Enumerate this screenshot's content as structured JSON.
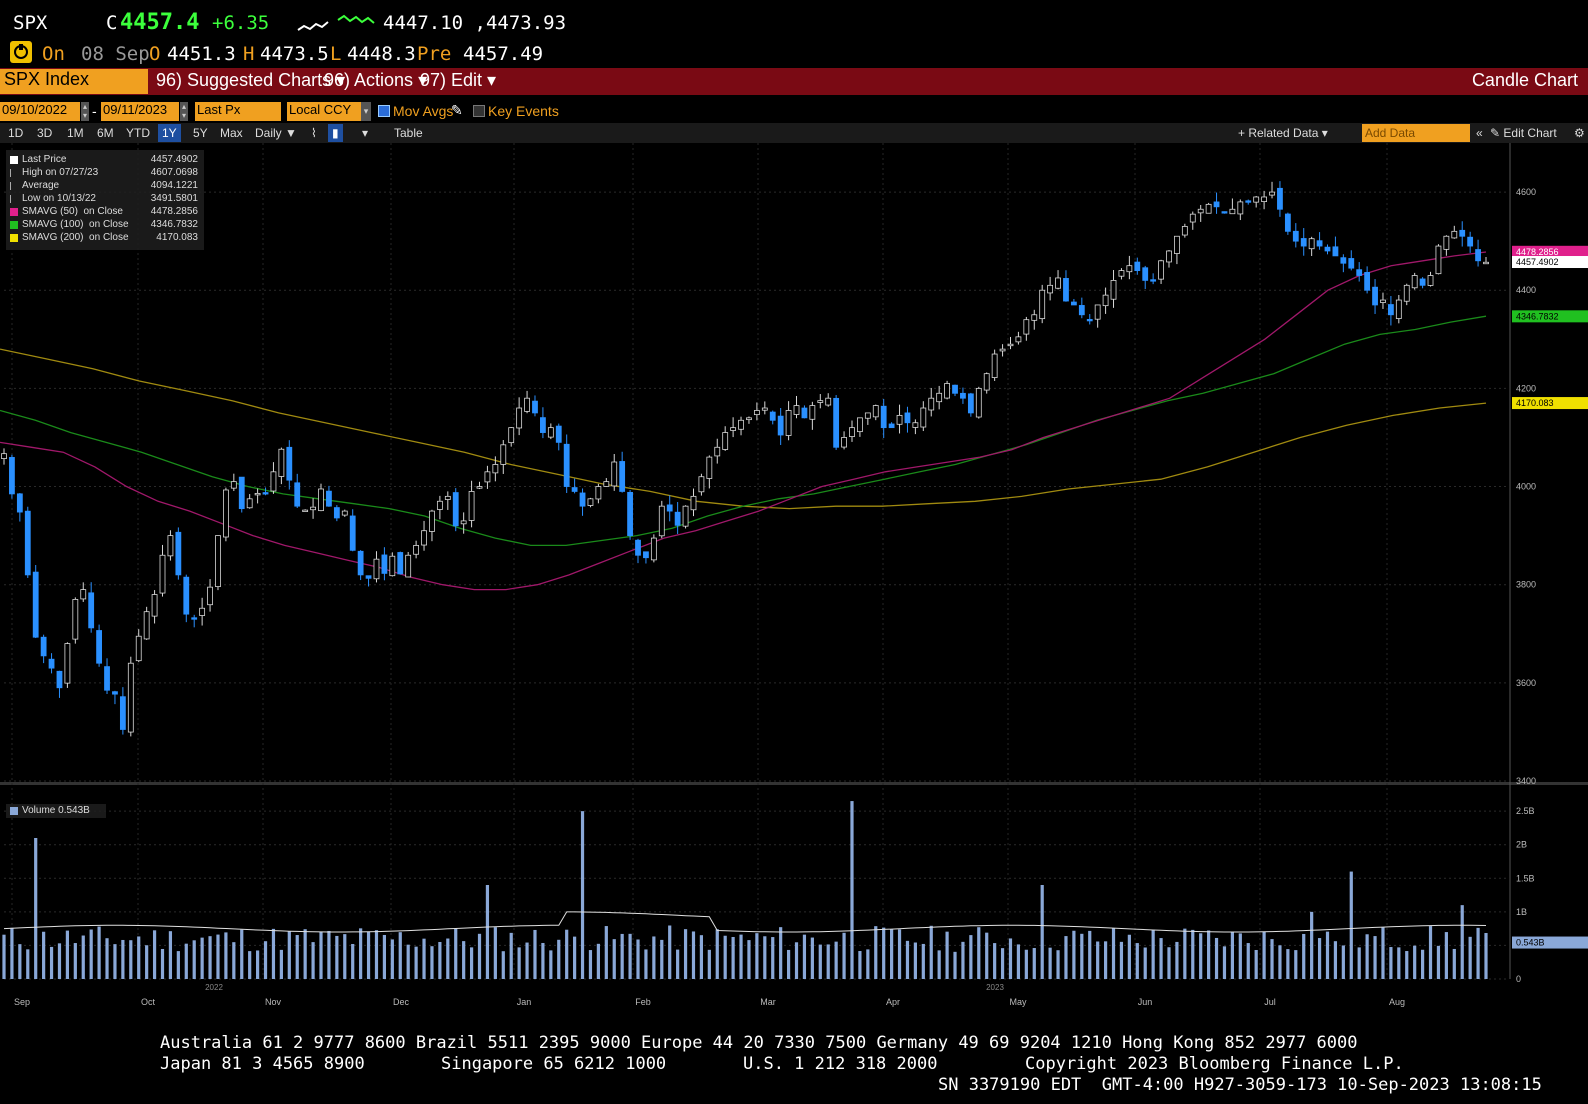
{
  "header": {
    "ticker": "SPX",
    "flag": "C",
    "last": "4457.4",
    "change": "+6.35",
    "range": "4447.10 ,4473.93",
    "row2": {
      "badge": "On",
      "date": "08 Sep",
      "o_label": "O",
      "o_value": "4451.3",
      "h_label": "H",
      "h_value": "4473.5",
      "l_label": "L",
      "l_value": "4448.3",
      "pre_label": "Pre",
      "pre_value": "4457.49"
    }
  },
  "menu": {
    "security": "SPX Index",
    "suggested": "96) Suggested Charts",
    "actions": "96) Actions",
    "edit": "97) Edit",
    "chart_type": "Candle Chart"
  },
  "controls": {
    "start_date": "09/10/2022",
    "end_date": "09/11/2023",
    "field": "Last Px",
    "currency": "Local CCY",
    "mov_avgs": "Mov Avgs",
    "key_events": "Key Events"
  },
  "toolbar": {
    "periods": [
      "1D",
      "3D",
      "1M",
      "6M",
      "YTD",
      "1Y",
      "5Y",
      "Max"
    ],
    "selected": "1Y",
    "freq": "Daily",
    "table": "Table",
    "related": "+ Related Data",
    "add_data": "Add Data",
    "edit_chart": "Edit Chart"
  },
  "legend": [
    {
      "name": "Last Price",
      "value": "4457.4902",
      "color": "#ffffff"
    },
    {
      "name": "High on 07/27/23",
      "value": "4607.0698",
      "color": ""
    },
    {
      "name": "Average",
      "value": "4094.1221",
      "color": ""
    },
    {
      "name": "Low on 10/13/22",
      "value": "3491.5801",
      "color": ""
    },
    {
      "name": "SMAVG (50)  on Close",
      "value": "4478.2856",
      "color": "#e0208c"
    },
    {
      "name": "SMAVG (100)  on Close",
      "value": "4346.7832",
      "color": "#20c020"
    },
    {
      "name": "SMAVG (200)  on Close",
      "value": "4170.083",
      "color": "#f0e000"
    }
  ],
  "volume_label": "Volume 0.543B",
  "footer": {
    "line1": "Australia 61 2 9777 8600 Brazil 5511 2395 9000 Europe 44 20 7330 7500 Germany 49 69 9204 1210 Hong Kong 852 2977 6000",
    "line2a": "Japan 81 3 4565 8900",
    "line2b": "Singapore 65 6212 1000",
    "line2c": "U.S. 1 212 318 2000",
    "line2d": "Copyright 2023 Bloomberg Finance L.P.",
    "line3": "SN 3379190 EDT  GMT-4:00 H927-3059-173 10-Sep-2023 13:08:15"
  },
  "chart_data": {
    "type": "candlestick",
    "price_axis": {
      "min": 3400,
      "max": 4700,
      "ticks": [
        3400,
        3600,
        3800,
        4000,
        4200,
        4400,
        4600
      ],
      "side": "right"
    },
    "volume_axis": {
      "min": 0,
      "max": 2.8,
      "ticks": [
        "0",
        "0.5B",
        "1B",
        "1.5B",
        "2B",
        "2.5B"
      ],
      "tick_values": [
        0,
        0.5,
        1,
        1.5,
        2,
        2.5
      ]
    },
    "x_labels": [
      "Sep",
      "Oct",
      "Nov",
      "Dec",
      "Jan",
      "Feb",
      "Mar",
      "Apr",
      "May",
      "Jun",
      "Jul",
      "Aug"
    ],
    "year_labels": [
      "2022",
      "2023"
    ],
    "grid": true,
    "close_series": [
      4067,
      3985,
      3948,
      3820,
      3693,
      3655,
      3630,
      3590,
      3680,
      3770,
      3790,
      3712,
      3640,
      3585,
      3577,
      3505,
      3640,
      3695,
      3745,
      3780,
      3860,
      3900,
      3820,
      3740,
      3730,
      3752,
      3795,
      3900,
      3993,
      4010,
      3955,
      3975,
      3986,
      3985,
      4030,
      4076,
      4013,
      3960,
      3952,
      3958,
      3995,
      3960,
      3936,
      3950,
      3870,
      3820,
      3813,
      3852,
      3823,
      3858,
      3822,
      3860,
      3880,
      3910,
      3950,
      3970,
      3980,
      3920,
      3930,
      3990,
      4000,
      4030,
      4045,
      4085,
      4120,
      4160,
      4180,
      4150,
      4110,
      4120,
      4090,
      4000,
      3990,
      3960,
      3975,
      4000,
      4010,
      4050,
      3990,
      3900,
      3860,
      3855,
      3895,
      3960,
      3950,
      3921,
      3960,
      3980,
      4020,
      4060,
      4080,
      4110,
      4120,
      4135,
      4140,
      4155,
      4160,
      4135,
      4105,
      4155,
      4165,
      4140,
      4165,
      4175,
      4180,
      4080,
      4100,
      4120,
      4140,
      4150,
      4165,
      4120,
      4120,
      4145,
      4130,
      4130,
      4160,
      4180,
      4190,
      4210,
      4190,
      4180,
      4150,
      4200,
      4230,
      4270,
      4280,
      4290,
      4305,
      4340,
      4350,
      4400,
      4410,
      4425,
      4378,
      4370,
      4350,
      4340,
      4370,
      4390,
      4420,
      4440,
      4450,
      4440,
      4420,
      4420,
      4460,
      4480,
      4510,
      4530,
      4555,
      4565,
      4575,
      4570,
      4560,
      4565,
      4580,
      4580,
      4590,
      4590,
      4600,
      4565,
      4520,
      4500,
      4490,
      4505,
      4490,
      4480,
      4470,
      4455,
      4445,
      4430,
      4400,
      4370,
      4380,
      4350,
      4380,
      4410,
      4430,
      4410,
      4430,
      4490,
      4510,
      4520,
      4510,
      4490,
      4460,
      4457
    ],
    "sma50": [
      4090,
      4080,
      4070,
      4040,
      4000,
      3970,
      3950,
      3925,
      3900,
      3880,
      3865,
      3850,
      3835,
      3815,
      3800,
      3790,
      3790,
      3800,
      3820,
      3845,
      3870,
      3895,
      3910,
      3930,
      3950,
      3975,
      4000,
      4015,
      4030,
      4040,
      4050,
      4060,
      4075,
      4100,
      4120,
      4140,
      4160,
      4180,
      4220,
      4260,
      4300,
      4350,
      4400,
      4430,
      4450,
      4460,
      4470,
      4478
    ],
    "sma100": [
      4155,
      4135,
      4110,
      4090,
      4070,
      4045,
      4020,
      4000,
      3985,
      3975,
      3965,
      3955,
      3940,
      3915,
      3895,
      3880,
      3880,
      3890,
      3900,
      3915,
      3940,
      3960,
      3975,
      3985,
      4000,
      4015,
      4030,
      4045,
      4065,
      4085,
      4110,
      4135,
      4155,
      4175,
      4190,
      4210,
      4230,
      4260,
      4290,
      4310,
      4320,
      4335,
      4347
    ],
    "sma200": [
      4280,
      4260,
      4240,
      4215,
      4195,
      4175,
      4150,
      4130,
      4110,
      4090,
      4070,
      4045,
      4025,
      4005,
      3990,
      3970,
      3960,
      3955,
      3960,
      3960,
      3965,
      3970,
      3980,
      3995,
      4005,
      4015,
      4040,
      4070,
      4100,
      4125,
      4145,
      4160,
      4170
    ]
  }
}
